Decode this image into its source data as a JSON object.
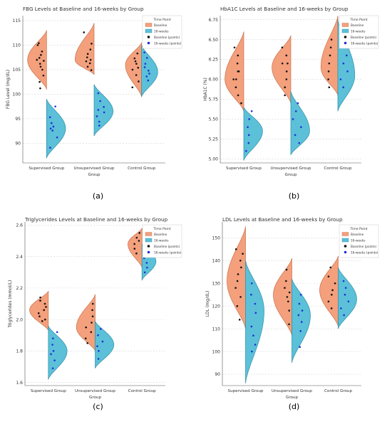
{
  "palette": {
    "baseline": "#f4a07c",
    "baseline_edge": "#c8704c",
    "wk16": "#5bc0d8",
    "wk16_edge": "#2f8fa8",
    "baseline_pt": "#111111",
    "wk16_pt": "#1f2fd8",
    "grid": "#d8d8d8"
  },
  "chart_data": [
    {
      "type": "violin",
      "title": "FBG Levels at Baseline and 16-weeks by Group",
      "xlabel": "Group",
      "ylabel": "FBG Level (mg/dL)",
      "panel_label": "(a)",
      "categories": [
        "Supervised Group",
        "Unsupervised Group",
        "Control Group"
      ],
      "ylim": [
        86,
        116
      ],
      "yticks": [
        "90",
        "95",
        "100",
        "105",
        "110",
        "115"
      ],
      "ytick_values": [
        90,
        95,
        100,
        105,
        110,
        115
      ],
      "legend": {
        "title": "Time Point",
        "entries": [
          "Baseline",
          "16-weeks",
          "Baseline (points)",
          "16-weeks (points)"
        ],
        "position": "top-right"
      },
      "series": [
        {
          "name": "Baseline",
          "groups": [
            {
              "min": 101,
              "max": 113,
              "mode": 107,
              "scale": 1.0,
              "points": [
                101.2,
                102.5,
                103.8,
                105,
                105.6,
                106.2,
                106.8,
                107,
                107.4,
                108,
                108.7,
                110,
                110.4
              ]
            },
            {
              "min": 104,
              "max": 114.5,
              "mode": 107,
              "scale": 1.0,
              "points": [
                104.9,
                105.6,
                106.3,
                106.7,
                107,
                107.5,
                108.2,
                109.1,
                110.3,
                112.6
              ]
            },
            {
              "min": 99.5,
              "max": 110.5,
              "mode": 106,
              "scale": 0.85,
              "points": [
                101.4,
                102.6,
                103.9,
                105,
                105.4,
                106.2,
                106.7,
                107.3,
                108.3
              ]
            }
          ]
        },
        {
          "name": "16-weeks",
          "groups": [
            {
              "min": 87,
              "max": 99,
              "mode": 93,
              "scale": 1.0,
              "points": [
                89.1,
                91.2,
                92.6,
                93,
                93.4,
                94.1,
                95.3,
                97.5
              ]
            },
            {
              "min": 91.5,
              "max": 102,
              "mode": 96.5,
              "scale": 1.0,
              "points": [
                93.6,
                94.4,
                95.5,
                96.3,
                96.8,
                97.4,
                98.6,
                100.2
              ]
            },
            {
              "min": 99.5,
              "max": 110,
              "mode": 104.5,
              "scale": 0.85,
              "points": [
                102.8,
                103.6,
                104.2,
                104.8,
                105.5,
                106.2,
                107.4,
                108.5
              ]
            }
          ]
        }
      ]
    },
    {
      "type": "violin",
      "title": "HbA1C Levels at Baseline and 16-weeks by Group",
      "xlabel": "Group",
      "ylabel": "HbA1C (%)",
      "panel_label": "(b)",
      "categories": [
        "Supervised Group",
        "Unsupervised Group",
        "Control Group"
      ],
      "ylim": [
        4.95,
        6.8
      ],
      "yticks": [
        "5.00",
        "5.25",
        "5.50",
        "5.75",
        "6.00",
        "6.25",
        "6.50",
        "6.75"
      ],
      "ytick_values": [
        5.0,
        5.25,
        5.5,
        5.75,
        6.0,
        6.25,
        6.5,
        6.75
      ],
      "legend": {
        "title": "Time Point",
        "entries": [
          "Baseline",
          "16-weeks",
          "Baseline (points)",
          "16-weeks (points)"
        ],
        "position": "top-right"
      },
      "series": [
        {
          "name": "Baseline",
          "groups": [
            {
              "min": 5.6,
              "max": 6.6,
              "mode": 6.0,
              "scale": 1.0,
              "points": [
                5.7,
                5.8,
                5.9,
                6.0,
                6.0,
                6.1,
                6.1,
                6.2,
                6.3,
                6.4
              ]
            },
            {
              "min": 5.7,
              "max": 6.55,
              "mode": 6.15,
              "scale": 1.0,
              "points": [
                5.8,
                5.9,
                6.0,
                6.1,
                6.2,
                6.2,
                6.3,
                6.4
              ]
            },
            {
              "min": 5.8,
              "max": 6.8,
              "mode": 6.15,
              "scale": 0.9,
              "points": [
                5.9,
                6.0,
                6.1,
                6.2,
                6.3,
                6.4,
                6.5
              ]
            }
          ]
        },
        {
          "name": "16-weeks",
          "groups": [
            {
              "min": 4.98,
              "max": 5.65,
              "mode": 5.35,
              "scale": 1.0,
              "points": [
                5.1,
                5.2,
                5.3,
                5.4,
                5.5,
                5.6
              ]
            },
            {
              "min": 5.05,
              "max": 5.85,
              "mode": 5.35,
              "scale": 1.0,
              "points": [
                5.2,
                5.3,
                5.4,
                5.5,
                5.6,
                5.7
              ]
            },
            {
              "min": 5.6,
              "max": 6.75,
              "mode": 6.05,
              "scale": 0.9,
              "points": [
                5.9,
                6.0,
                6.1,
                6.2,
                6.3,
                6.6
              ]
            }
          ]
        }
      ]
    },
    {
      "type": "violin",
      "title": "Triglycerides Levels at Baseline and 16-weeks by Group",
      "xlabel": "Group",
      "ylabel": "Triglycerides (mmol/L)",
      "panel_label": "(c)",
      "categories": [
        "Supervised Group",
        "Unsupervised Group",
        "Control Group"
      ],
      "ylim": [
        1.58,
        2.62
      ],
      "yticks": [
        "1.6",
        "1.8",
        "2.0",
        "2.2",
        "2.4",
        "2.6"
      ],
      "ytick_values": [
        1.6,
        1.8,
        2.0,
        2.2,
        2.4,
        2.6
      ],
      "legend": {
        "title": "Time Point",
        "entries": [
          "Baseline",
          "16-weeks",
          "Baseline (points)",
          "16-weeks (points)"
        ],
        "position": "top-right"
      },
      "series": [
        {
          "name": "Baseline",
          "groups": [
            {
              "min": 1.93,
              "max": 2.18,
              "mode": 2.06,
              "scale": 1.0,
              "points": [
                1.99,
                2.0,
                2.02,
                2.04,
                2.06,
                2.08,
                2.1,
                2.12,
                2.14
              ]
            },
            {
              "min": 1.8,
              "max": 2.16,
              "mode": 1.95,
              "scale": 1.0,
              "points": [
                1.85,
                1.88,
                1.92,
                1.95,
                1.98,
                2.02,
                2.06,
                2.1
              ]
            },
            {
              "min": 2.33,
              "max": 2.58,
              "mode": 2.48,
              "scale": 0.75,
              "points": [
                2.42,
                2.45,
                2.48,
                2.5,
                2.52,
                2.55
              ]
            }
          ]
        },
        {
          "name": "16-weeks",
          "groups": [
            {
              "min": 1.62,
              "max": 1.96,
              "mode": 1.8,
              "scale": 1.0,
              "points": [
                1.69,
                1.74,
                1.78,
                1.8,
                1.84,
                1.88,
                1.92
              ]
            },
            {
              "min": 1.69,
              "max": 1.99,
              "mode": 1.84,
              "scale": 1.0,
              "points": [
                1.75,
                1.8,
                1.83,
                1.86,
                1.9,
                1.94
              ]
            },
            {
              "min": 2.25,
              "max": 2.48,
              "mode": 2.37,
              "scale": 0.75,
              "points": [
                2.3,
                2.33,
                2.36,
                2.39,
                2.42
              ]
            }
          ]
        }
      ]
    },
    {
      "type": "violin",
      "title": "LDL Levels at Baseline and 16-weeks by Group",
      "xlabel": "Group",
      "ylabel": "LDL (mg/dL)",
      "panel_label": "(d)",
      "categories": [
        "Supervised Group",
        "Unsupervised Group",
        "Control Group"
      ],
      "ylim": [
        85,
        157
      ],
      "yticks": [
        "90",
        "100",
        "110",
        "120",
        "130",
        "140",
        "150"
      ],
      "ytick_values": [
        90,
        100,
        110,
        120,
        130,
        140,
        150
      ],
      "legend": {
        "title": "Time Point",
        "entries": [
          "Baseline",
          "16-weeks",
          "Baseline (points)",
          "16-weeks (points)"
        ],
        "position": "top-right"
      },
      "series": [
        {
          "name": "Baseline",
          "groups": [
            {
              "min": 110,
              "max": 155,
              "mode": 131,
              "scale": 1.0,
              "points": [
                114,
                120,
                124,
                128,
                131,
                134,
                137,
                140,
                143,
                145
              ]
            },
            {
              "min": 107,
              "max": 141,
              "mode": 125,
              "scale": 1.0,
              "points": [
                112,
                118,
                122,
                124,
                126,
                128,
                131,
                136
              ]
            },
            {
              "min": 111,
              "max": 142,
              "mode": 127,
              "scale": 1.0,
              "points": [
                119,
                122,
                125,
                127,
                130,
                133,
                137
              ]
            }
          ]
        },
        {
          "name": "16-weeks",
          "groups": [
            {
              "min": 86,
              "max": 140,
              "mode": 118,
              "scale": 1.0,
              "points": [
                100,
                103,
                107,
                111,
                117,
                121,
                125,
                130
              ]
            },
            {
              "min": 95,
              "max": 132,
              "mode": 116,
              "scale": 1.0,
              "points": [
                102,
                109,
                113,
                116,
                118,
                121,
                125
              ]
            },
            {
              "min": 110,
              "max": 137,
              "mode": 123,
              "scale": 1.0,
              "points": [
                116,
                119,
                122,
                125,
                128,
                131
              ]
            }
          ]
        }
      ]
    }
  ]
}
